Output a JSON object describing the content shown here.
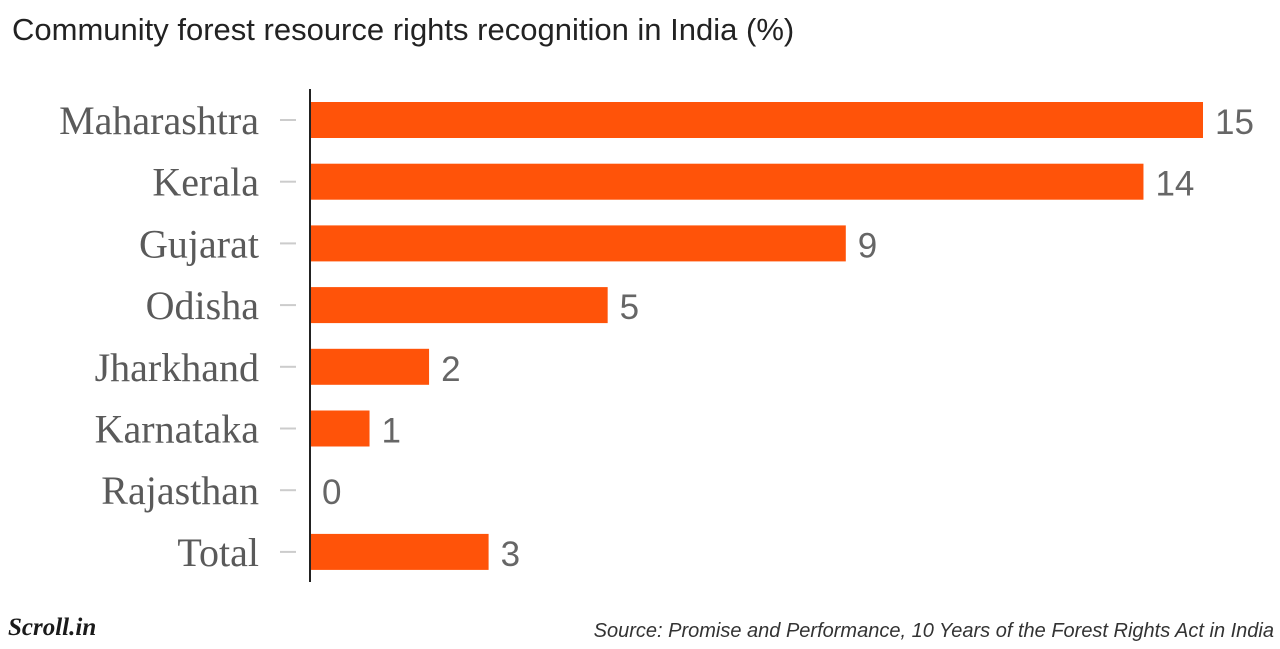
{
  "chart_data": {
    "type": "bar",
    "orientation": "horizontal",
    "title": "Community forest resource rights recognition in India (%)",
    "categories": [
      "Maharashtra",
      "Kerala",
      "Gujarat",
      "Odisha",
      "Jharkhand",
      "Karnataka",
      "Rajasthan",
      "Total"
    ],
    "values": [
      15,
      14,
      9,
      5,
      2,
      1,
      0,
      3
    ],
    "xlim": [
      0,
      15
    ],
    "grid": false,
    "legend": "none",
    "bar_color": "#ff5309"
  },
  "footer": {
    "brand": "Scroll.in",
    "source": "Source: Promise and Performance, 10 Years of the Forest Rights Act in India"
  }
}
